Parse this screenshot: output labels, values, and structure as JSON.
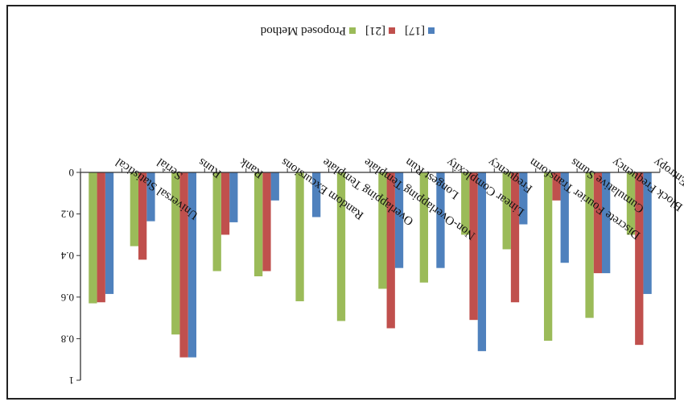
{
  "chart_data": {
    "type": "bar",
    "orientation": "rotated-180",
    "categories": [
      "Approximate Entropy",
      "Block Frequency",
      "Cumulative Sums",
      "Discrete Fourier Transform",
      "Frequency",
      "Linear Complexity",
      "Longest Run",
      "Non-Overlapping Template",
      "Overlapping Template",
      "Random Excursions",
      "Rank",
      "Runs",
      "Serial",
      "Universal Statistical"
    ],
    "series": [
      {
        "name": "[17]",
        "color": "#4f81bd",
        "values": [
          0.585,
          0.485,
          0.435,
          0.25,
          0.86,
          0.46,
          0.46,
          0.0,
          0.215,
          0.135,
          0.24,
          0.89,
          0.235,
          0.585
        ]
      },
      {
        "name": "[21]",
        "color": "#c0504d",
        "values": [
          0.83,
          0.485,
          0.135,
          0.625,
          0.71,
          0.0,
          0.75,
          0.0,
          0.0,
          0.475,
          0.3,
          0.89,
          0.42,
          0.625
        ]
      },
      {
        "name": "Proposed Method",
        "color": "#9bbb59",
        "values": [
          0.3,
          0.7,
          0.81,
          0.37,
          0.3,
          0.53,
          0.56,
          0.715,
          0.62,
          0.5,
          0.475,
          0.78,
          0.355,
          0.63
        ]
      }
    ],
    "y_ticks": [
      "0",
      "0.2",
      "0.4",
      "0.6",
      "0.8",
      "1"
    ],
    "ylim": [
      0,
      1
    ],
    "legend_position": "top-center",
    "grid": false
  }
}
